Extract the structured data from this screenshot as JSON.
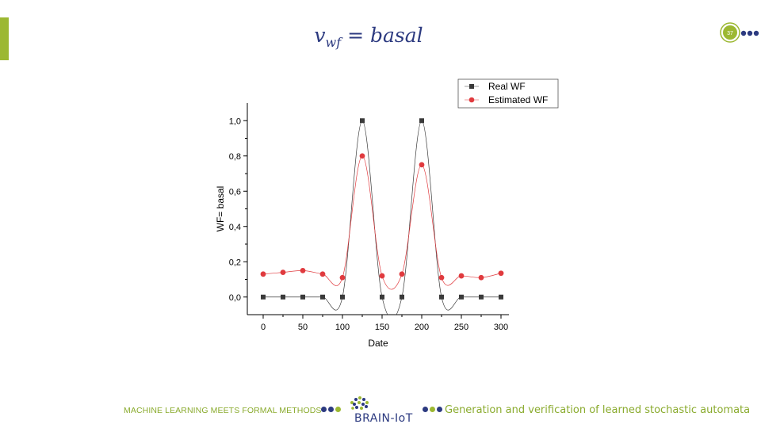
{
  "slide": {
    "title_var": "v",
    "title_sub": "wf",
    "title_rest": " = basal",
    "page_number": "37"
  },
  "colors": {
    "accent_green": "#9cb832",
    "navy": "#2c3a80",
    "real_series": "#3a3a3a",
    "estimated_series": "#e03a3e"
  },
  "footer": {
    "left_text": "MACHINE LEARNING MEETS FORMAL METHODS",
    "logo_text": "BRAIN-IoT",
    "right_text": "Generation and verification  of learned stochastic automata"
  },
  "chart_data": {
    "type": "line",
    "xlabel": "Date",
    "ylabel": "WF= basal",
    "xlim": [
      -20,
      310
    ],
    "ylim": [
      -0.1,
      1.1
    ],
    "x_ticks": [
      0,
      50,
      100,
      150,
      200,
      250,
      300
    ],
    "x_tick_labels": [
      "0",
      "50",
      "100",
      "150",
      "200",
      "250",
      "300"
    ],
    "y_ticks": [
      0.0,
      0.2,
      0.4,
      0.6,
      0.8,
      1.0
    ],
    "y_tick_labels": [
      "0,0",
      "0,2",
      "0,4",
      "0,6",
      "0,8",
      "1,0"
    ],
    "grid": false,
    "legend_position": "top-right",
    "x": [
      0,
      25,
      50,
      75,
      100,
      125,
      150,
      175,
      200,
      225,
      250,
      275,
      300
    ],
    "series": [
      {
        "name": "Real WF",
        "marker": "square",
        "color": "#3a3a3a",
        "values": [
          0,
          0,
          0,
          0,
          0,
          1.0,
          0,
          0,
          1.0,
          0,
          0,
          0,
          0
        ]
      },
      {
        "name": "Estimated WF",
        "marker": "circle",
        "color": "#e03a3e",
        "values": [
          0.13,
          0.14,
          0.15,
          0.13,
          0.11,
          0.8,
          0.12,
          0.13,
          0.75,
          0.11,
          0.12,
          0.11,
          0.135
        ]
      }
    ]
  }
}
